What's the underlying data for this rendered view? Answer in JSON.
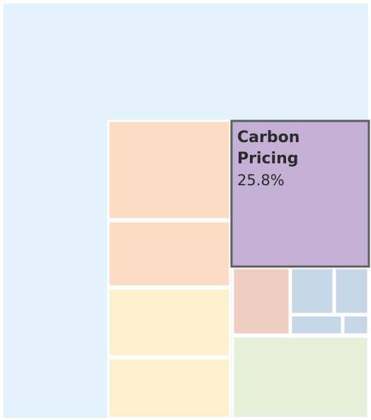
{
  "chart_data": {
    "type": "treemap",
    "title": "",
    "highlight": {
      "name": "Carbon Pricing",
      "name_lines": [
        "Carbon",
        "Pricing"
      ],
      "value_label": "25.8%",
      "value": 25.8
    },
    "colors": {
      "background": "#e4f3fb",
      "highlight_fill": "#c4afd5",
      "highlight_stroke": "#5e5e5e",
      "tile_stroke": "#ffffff",
      "orange": "#fbdcc4",
      "yellow": "#fdf0cd",
      "pink": "#efcdc1",
      "blue": "#c6d8e8",
      "green": "#e6efd8"
    }
  }
}
